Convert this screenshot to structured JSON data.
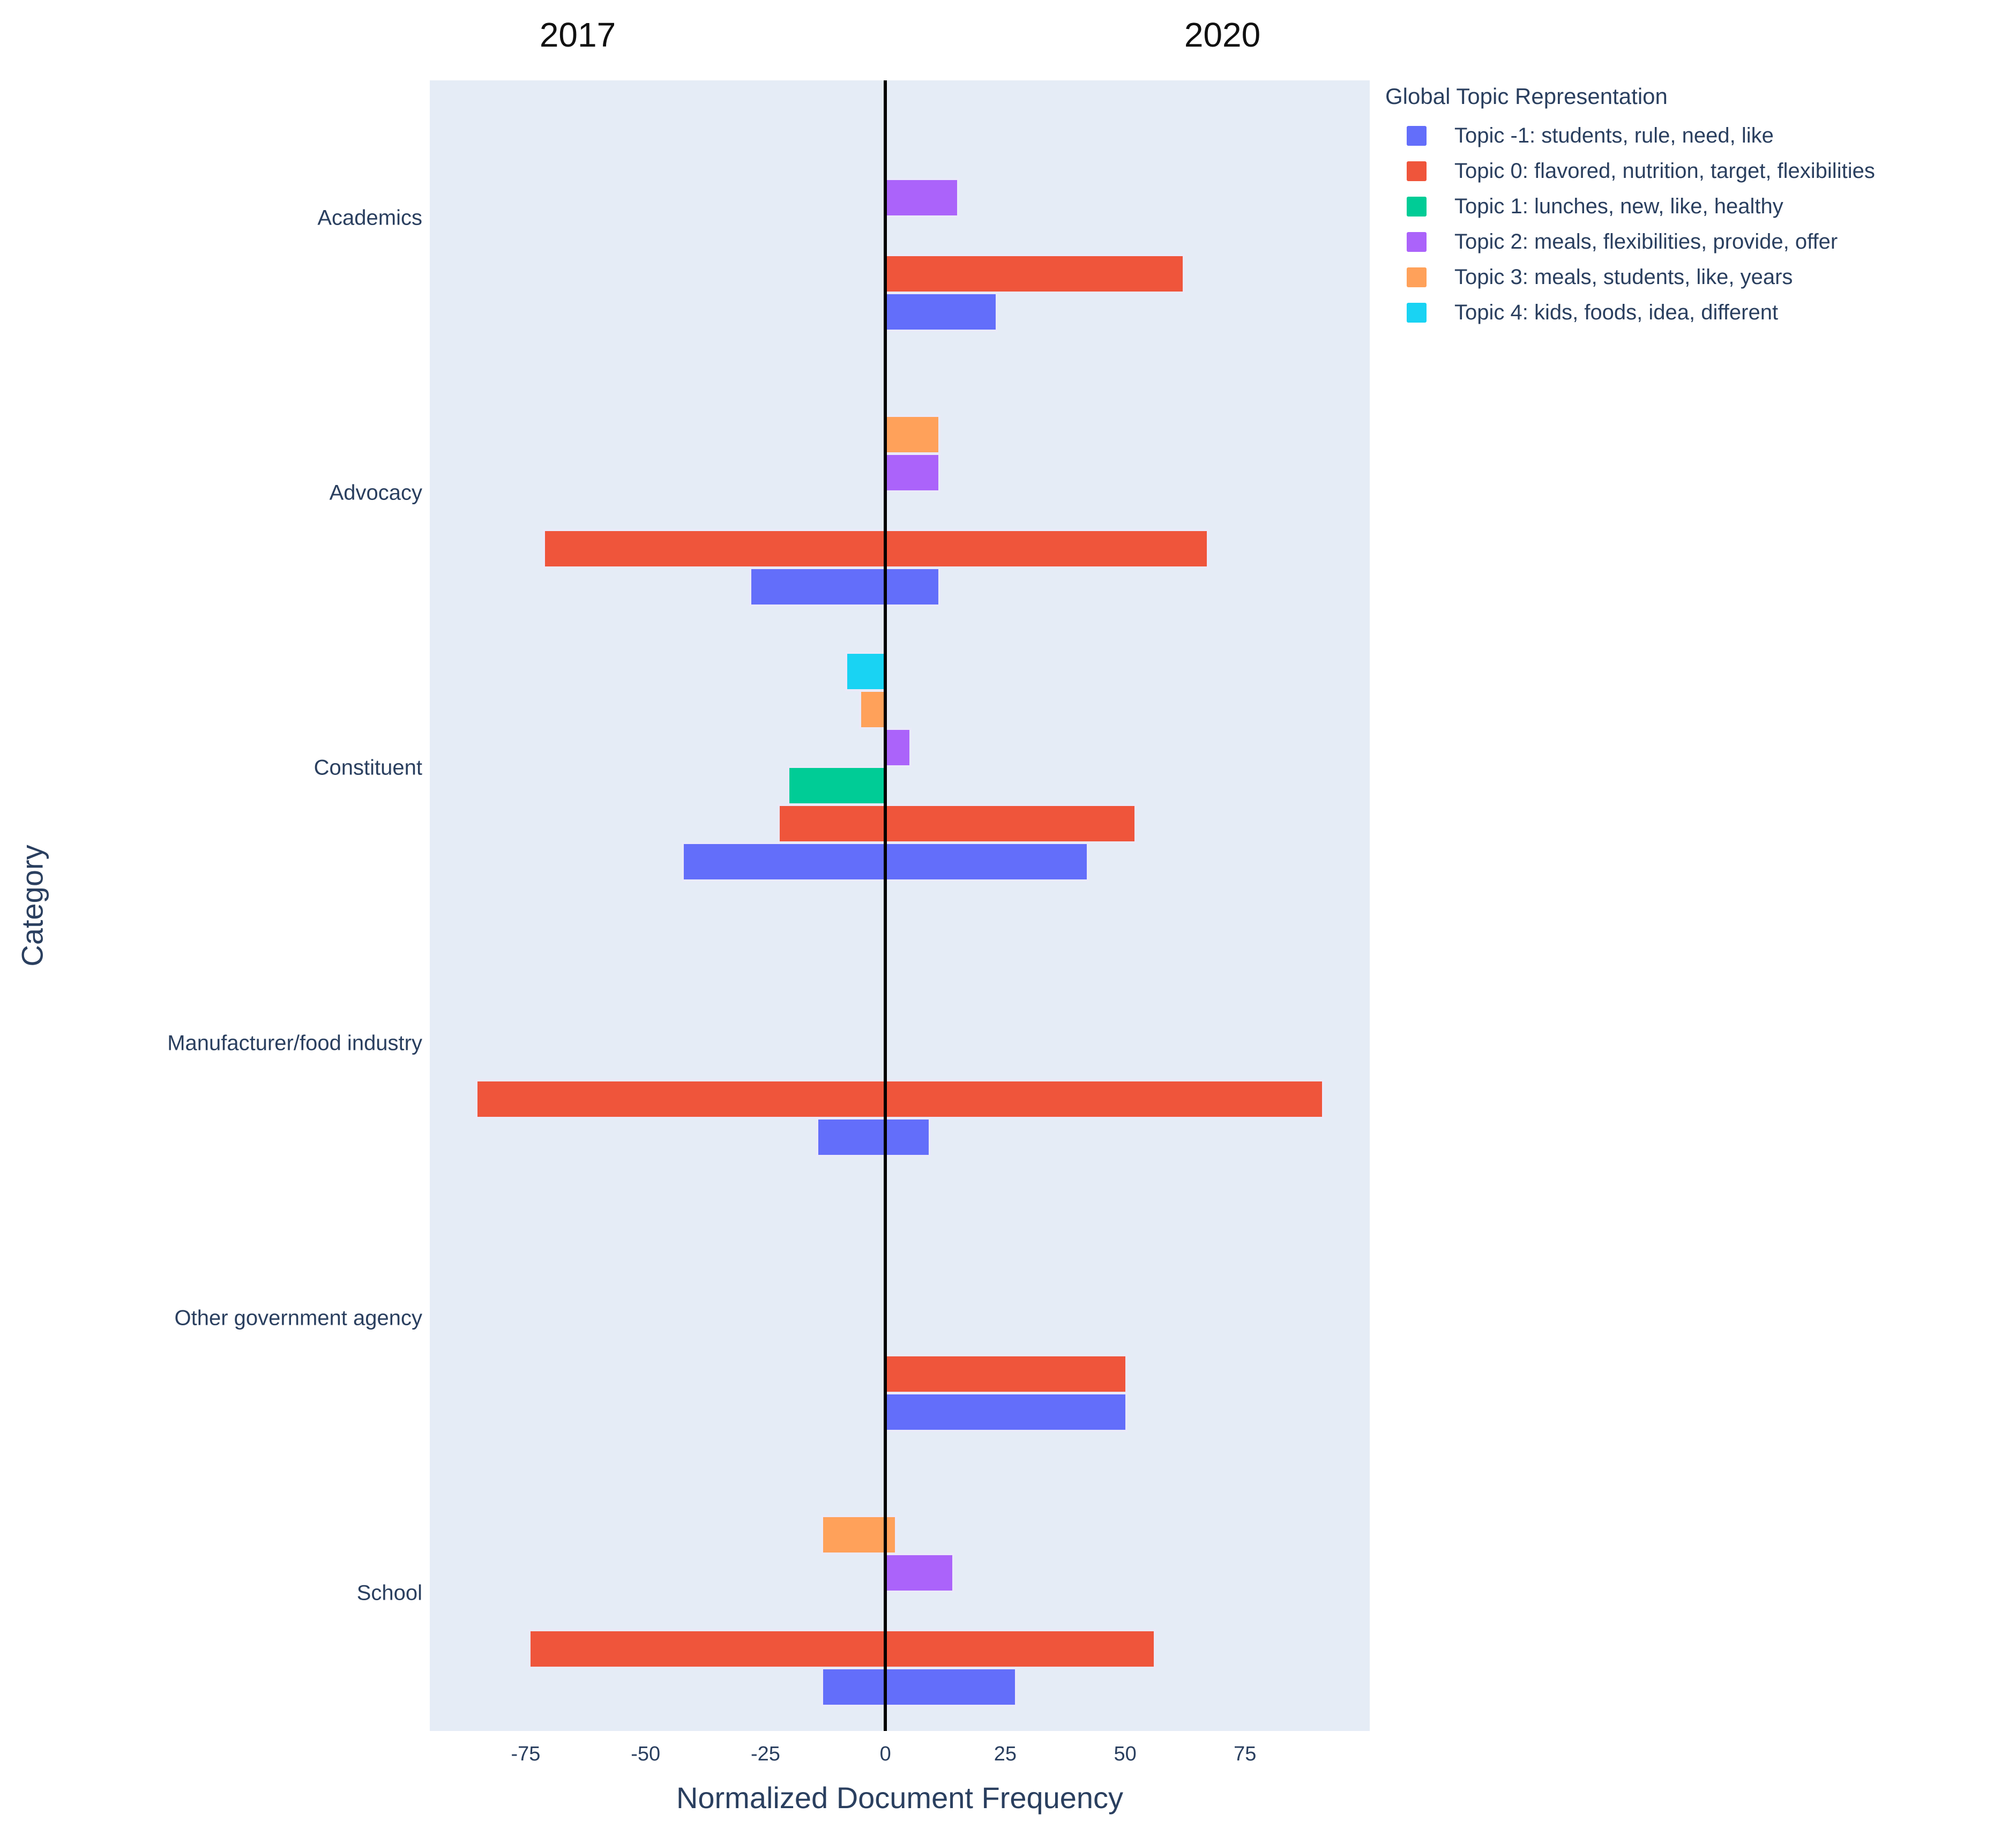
{
  "legend": {
    "title": "Global Topic Representation"
  },
  "chart_data": {
    "type": "bar",
    "orientation": "horizontal",
    "diverging": true,
    "title": "",
    "xlabel": "Normalized Document Frequency",
    "ylabel": "Category",
    "column_headers": [
      "2017",
      "2020"
    ],
    "x_ticks": [
      -75,
      -50,
      -25,
      0,
      25,
      50,
      75
    ],
    "x_range": [
      -95,
      101
    ],
    "grid": false,
    "legend_position": "top-right",
    "plot_bg_color": "#E5ECF6",
    "zero_line_color": "#000000",
    "categories": [
      "Academics",
      "Advocacy",
      "Constituent",
      "Manufacturer/food industry",
      "Other government agency",
      "School"
    ],
    "row_order_top_to_bottom": [
      "Topic 4",
      "Topic 3",
      "Topic 2",
      "Topic 1",
      "Topic 0",
      "Topic -1"
    ],
    "value_convention": "2017 values plotted left of zero (negative), 2020 values plotted right of zero (positive)",
    "series": [
      {
        "name": "Topic -1: students, rule, need, like",
        "color": "#636EFA",
        "slot": 5,
        "values_2017": [
          0,
          -28,
          -42,
          -14,
          0,
          -13
        ],
        "values_2020": [
          23,
          11,
          42,
          9,
          50,
          27
        ]
      },
      {
        "name": "Topic 0: flavored, nutrition, target, flexibilities",
        "color": "#EF553B",
        "slot": 4,
        "values_2017": [
          0,
          -71,
          -22,
          -85,
          0,
          -74
        ],
        "values_2020": [
          62,
          67,
          52,
          91,
          50,
          56
        ]
      },
      {
        "name": "Topic 1: lunches, new, like, healthy",
        "color": "#00CC96",
        "slot": 3,
        "values_2017": [
          0,
          0,
          -20,
          0,
          0,
          0
        ],
        "values_2020": [
          0,
          0,
          0,
          0,
          0,
          0
        ]
      },
      {
        "name": "Topic 2: meals, flexibilities, provide, offer",
        "color": "#AB63FA",
        "slot": 2,
        "values_2017": [
          0,
          0,
          0,
          0,
          0,
          0
        ],
        "values_2020": [
          15,
          11,
          5,
          0,
          0,
          14
        ]
      },
      {
        "name": "Topic 3: meals, students, like, years",
        "color": "#FFA15A",
        "slot": 1,
        "values_2017": [
          0,
          0,
          -5,
          0,
          0,
          -13
        ],
        "values_2020": [
          0,
          11,
          0,
          0,
          0,
          2
        ]
      },
      {
        "name": "Topic 4: kids, foods, idea, different",
        "color": "#19D3F3",
        "slot": 0,
        "values_2017": [
          0,
          0,
          -8,
          0,
          0,
          0
        ],
        "values_2020": [
          0,
          0,
          0,
          0,
          0,
          0
        ]
      }
    ]
  }
}
